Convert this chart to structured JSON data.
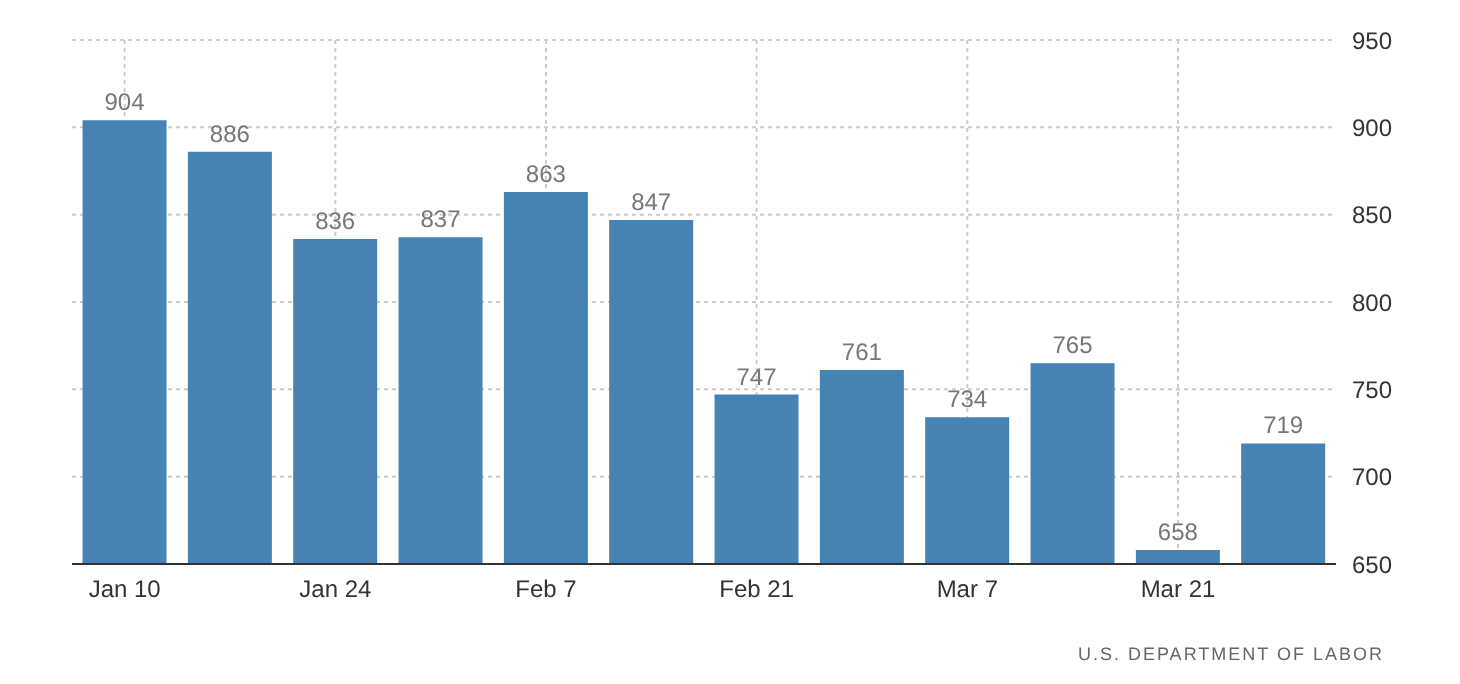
{
  "chart_data": {
    "type": "bar",
    "categories": [
      "Jan 10",
      null,
      "Jan 24",
      null,
      "Feb 7",
      null,
      "Feb 21",
      null,
      "Mar 7",
      null,
      "Mar 21",
      null
    ],
    "values": [
      904,
      886,
      836,
      837,
      863,
      847,
      747,
      761,
      734,
      765,
      658,
      719
    ],
    "color": "#4682b4",
    "ylim": [
      650,
      950
    ],
    "yticks": [
      650,
      700,
      750,
      800,
      850,
      900,
      950
    ],
    "grid": true,
    "data_labels": true,
    "annotations": [
      "U.S. DEPARTMENT OF LABOR"
    ]
  }
}
